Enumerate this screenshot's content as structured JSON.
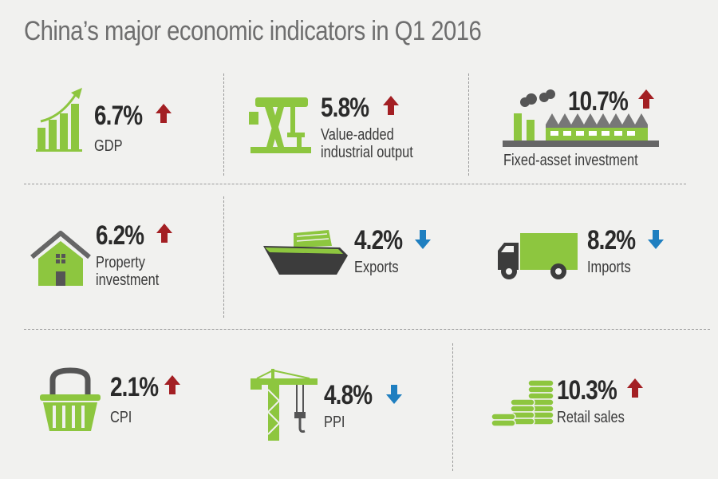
{
  "title": "China’s major economic indicators in Q1 2016",
  "colors": {
    "accent_green": "#8dc63f",
    "dark_gray": "#444444",
    "up": "#a31f23",
    "down": "#1f7fc0"
  },
  "indicators": [
    {
      "value": "6.7%",
      "direction": "up",
      "label_lines": [
        "GDP"
      ],
      "icon": "bar-chart-growth-icon"
    },
    {
      "value": "5.8%",
      "direction": "up",
      "label_lines": [
        "Value-added",
        "industrial output"
      ],
      "icon": "oil-pump-icon"
    },
    {
      "value": "10.7%",
      "direction": "up",
      "label_lines": [
        "Fixed-asset investment"
      ],
      "icon": "factory-icon"
    },
    {
      "value": "6.2%",
      "direction": "up",
      "label_lines": [
        "Property",
        "investment"
      ],
      "icon": "house-icon"
    },
    {
      "value": "4.2%",
      "direction": "down",
      "label_lines": [
        "Exports"
      ],
      "icon": "cargo-ship-icon"
    },
    {
      "value": "8.2%",
      "direction": "down",
      "label_lines": [
        "Imports"
      ],
      "icon": "truck-icon"
    },
    {
      "value": "2.1%",
      "direction": "up",
      "label_lines": [
        "CPI"
      ],
      "icon": "shopping-basket-icon"
    },
    {
      "value": "4.8%",
      "direction": "down",
      "label_lines": [
        "PPI"
      ],
      "icon": "tower-crane-icon"
    },
    {
      "value": "10.3%",
      "direction": "up",
      "label_lines": [
        "Retail sales"
      ],
      "icon": "coin-stacks-icon"
    }
  ]
}
